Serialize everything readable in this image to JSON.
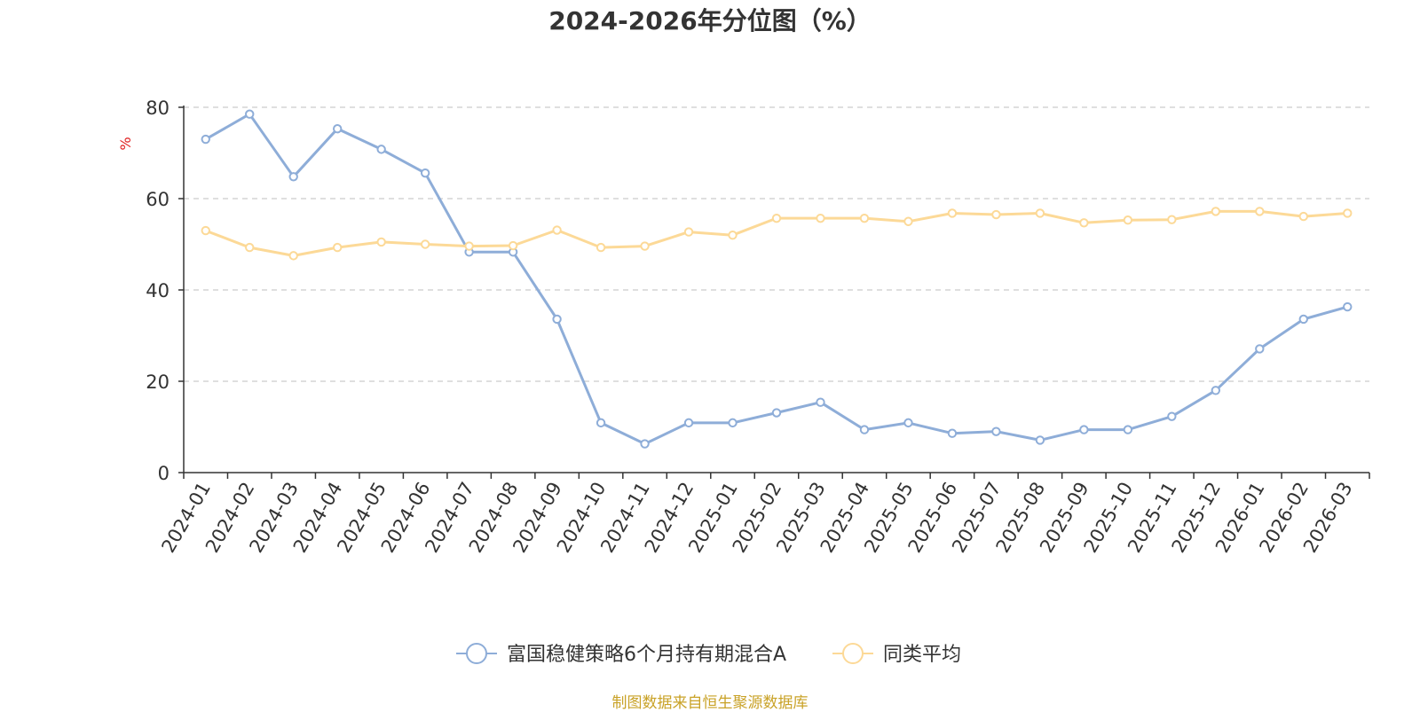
{
  "chart_data": {
    "type": "line",
    "title": "2024-2026年分位图（%）",
    "ylabel": "%",
    "xlabel": "",
    "ylim": [
      0,
      80
    ],
    "yticks": [
      0,
      20,
      40,
      60,
      80
    ],
    "grid": true,
    "legend_position": "bottom-center",
    "categories": [
      "2024-01",
      "2024-02",
      "2024-03",
      "2024-04",
      "2024-05",
      "2024-06",
      "2024-07",
      "2024-08",
      "2024-09",
      "2024-10",
      "2024-11",
      "2024-12",
      "2025-01",
      "2025-02",
      "2025-03",
      "2025-04",
      "2025-05",
      "2025-06",
      "2025-07",
      "2025-08",
      "2025-09",
      "2025-10",
      "2025-11",
      "2025-12",
      "2026-01",
      "2026-02",
      "2026-03"
    ],
    "series": [
      {
        "name": "富国稳健策略6个月持有期混合A",
        "color": "#8eadd8",
        "values": [
          73.0,
          78.5,
          64.8,
          75.3,
          70.8,
          65.6,
          48.3,
          48.3,
          33.6,
          10.9,
          6.3,
          10.9,
          10.9,
          13.1,
          15.4,
          9.4,
          10.9,
          8.6,
          9.0,
          7.1,
          9.4,
          9.4,
          12.3,
          18.0,
          27.1,
          33.6,
          36.3
        ]
      },
      {
        "name": "同类平均",
        "color": "#fcd997",
        "values": [
          53.0,
          49.3,
          47.5,
          49.3,
          50.5,
          50.0,
          49.6,
          49.7,
          53.1,
          49.3,
          49.6,
          52.7,
          52.0,
          55.7,
          55.7,
          55.7,
          55.0,
          56.8,
          56.5,
          56.8,
          54.7,
          55.3,
          55.4,
          57.2,
          57.2,
          56.1,
          56.8
        ]
      }
    ]
  },
  "footer": {
    "source": "制图数据来自恒生聚源数据库"
  },
  "colors": {
    "axis": "#333333",
    "grid": "#cccccc",
    "source": "#c9a227",
    "unit": "#e02020"
  }
}
